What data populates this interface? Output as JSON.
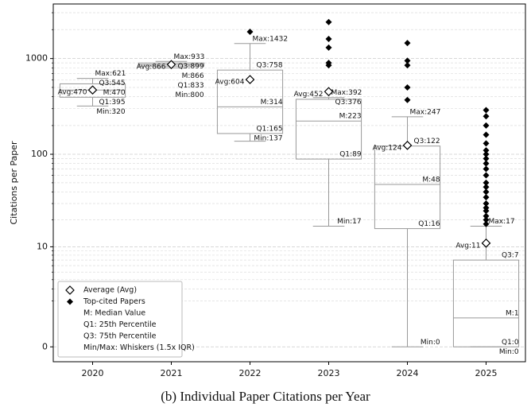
{
  "chart_data": {
    "type": "box",
    "caption": "(b) Individual Paper Citations per Year",
    "y_label": "Citations per Paper",
    "categories": [
      "2020",
      "2021",
      "2022",
      "2023",
      "2024",
      "2025"
    ],
    "yscale": "symlog",
    "ylim": [
      -0.3,
      3700
    ],
    "yticks": [
      0,
      10,
      100,
      1000
    ],
    "yminorticks": [
      2,
      3,
      4,
      5,
      6,
      7,
      8,
      9,
      20,
      30,
      40,
      50,
      60,
      70,
      80,
      90,
      200,
      300,
      400,
      500,
      600,
      700,
      800,
      900,
      2000,
      3000
    ],
    "grid": true,
    "box_color": "#999999",
    "min": {
      "values": [
        320,
        800,
        137,
        17,
        0,
        0
      ],
      "value_labels": [
        "Min:320",
        "Min:800",
        "Min:137",
        "Min:17",
        "Min:0",
        "Min:0"
      ]
    },
    "q1": {
      "values": [
        395,
        833,
        165,
        89,
        16,
        0
      ],
      "value_labels": [
        "Q1:395",
        "Q1:833",
        "Q1:165",
        "Q1:89",
        "Q1:16",
        "Q1:0"
      ]
    },
    "median": {
      "values": [
        470,
        866,
        314,
        223,
        48,
        1
      ],
      "value_labels": [
        "M:470",
        "M:866",
        "M:314",
        "M:223",
        "M:48",
        "M:1"
      ]
    },
    "q3": {
      "values": [
        545,
        899,
        758,
        376,
        122,
        7
      ],
      "value_labels": [
        "Q3:545",
        "Q3:899",
        "Q3:758",
        "Q3:376",
        "Q3:122",
        "Q3:7"
      ]
    },
    "max": {
      "values": [
        621,
        933,
        1432,
        392,
        247,
        17
      ],
      "value_labels": [
        "Max:621",
        "Max:933",
        "Max:1432",
        "Max:392",
        "Max:247",
        "Max:17"
      ]
    },
    "mean": {
      "name": "Average (Avg)",
      "values": [
        470,
        866,
        604,
        452,
        124,
        11
      ],
      "value_labels": [
        "Avg:470",
        "Avg:866",
        "Avg:604",
        "Avg:452",
        "Avg:124",
        "Avg:11"
      ]
    },
    "outliers": {
      "name": "Top-cited Papers",
      "values": [
        [],
        [],
        [
          1900
        ],
        [
          2400,
          1600,
          1300,
          900,
          850
        ],
        [
          1450,
          950,
          850,
          500,
          370
        ],
        [
          290,
          250,
          200,
          160,
          130,
          110,
          100,
          90,
          80,
          70,
          60,
          50,
          45,
          40,
          35,
          30,
          27,
          25,
          22,
          20,
          18
        ]
      ]
    },
    "legend": {
      "position": "lower left",
      "notes": [
        "M: Median Value",
        "Q1: 25th Percentile",
        "Q3: 75th Percentile",
        "Min/Max: Whiskers (1.5x IQR)"
      ]
    }
  }
}
